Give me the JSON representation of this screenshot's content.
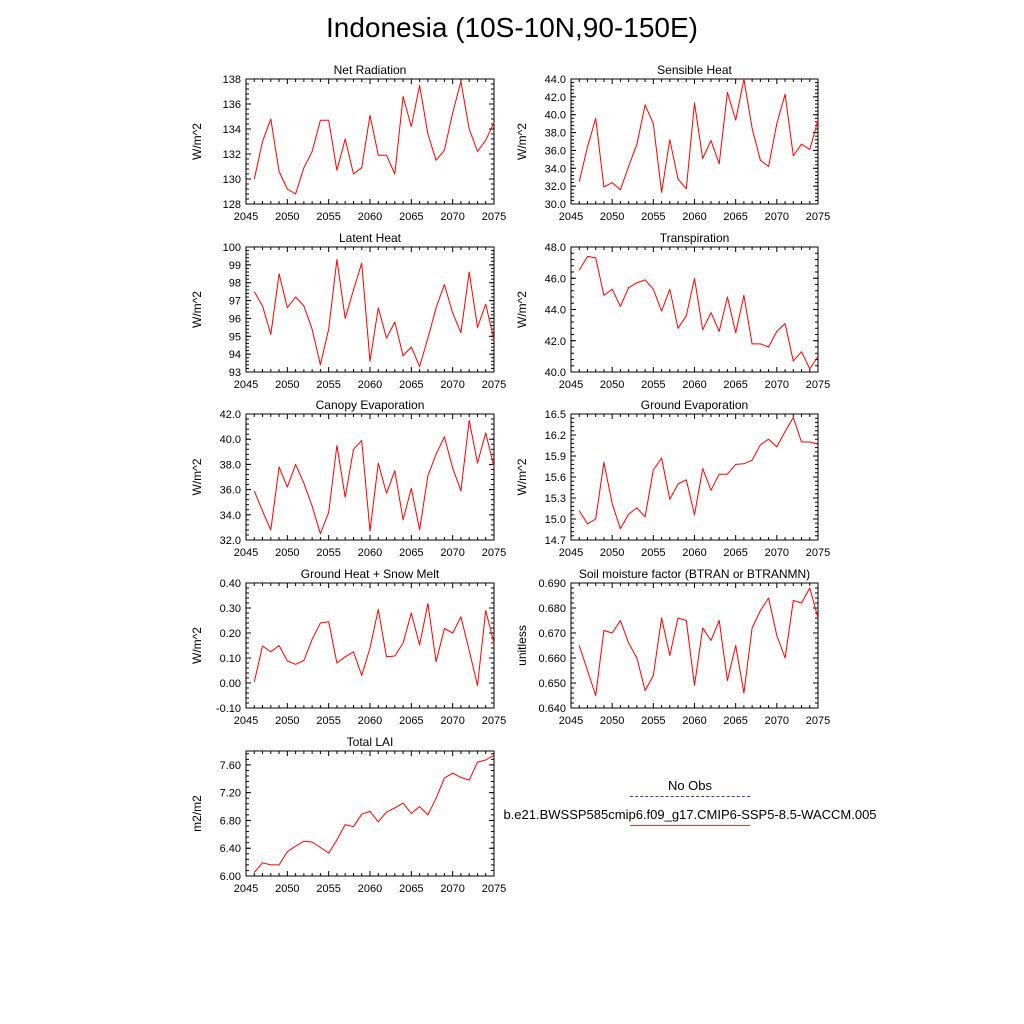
{
  "title": "Indonesia (10S-10N,90-150E)",
  "legend": [
    {
      "label": "No Obs",
      "color": "#3a3aa8",
      "style": "dashed"
    },
    {
      "label": "b.e21.BWSSP585cmip6.f09_g17.CMIP6-SSP5-8.5-WACCM.005",
      "color": "#ff0000",
      "style": "solid"
    }
  ],
  "chart_data": [
    {
      "type": "line",
      "title": "Net Radiation",
      "ylabel": "W/m^2",
      "xlim": [
        2045,
        2075
      ],
      "ylim": [
        128,
        138
      ],
      "xticks": [
        2045,
        2050,
        2055,
        2060,
        2065,
        2070,
        2075
      ],
      "yticks": [
        "128",
        "130",
        "132",
        "134",
        "136",
        "138"
      ],
      "series": [
        {
          "color": "#ff0000",
          "x": [
            2046,
            2047,
            2048,
            2049,
            2050,
            2051,
            2052,
            2053,
            2054,
            2055,
            2056,
            2057,
            2058,
            2059,
            2060,
            2061,
            2062,
            2063,
            2064,
            2065,
            2066,
            2067,
            2068,
            2069,
            2070,
            2071,
            2072,
            2073,
            2074,
            2075
          ],
          "y": [
            130.0,
            133.0,
            134.8,
            130.6,
            129.2,
            128.8,
            130.9,
            132.2,
            134.7,
            134.7,
            130.7,
            133.2,
            130.4,
            130.9,
            135.1,
            131.9,
            131.9,
            130.4,
            136.6,
            134.2,
            137.5,
            133.6,
            131.5,
            132.3,
            135.3,
            137.8,
            134.0,
            132.2,
            133.1,
            134.5
          ]
        }
      ]
    },
    {
      "type": "line",
      "title": "Sensible Heat",
      "ylabel": "W/m^2",
      "xlim": [
        2045,
        2075
      ],
      "ylim": [
        30,
        44
      ],
      "xticks": [
        2045,
        2050,
        2055,
        2060,
        2065,
        2070,
        2075
      ],
      "yticks": [
        "30.0",
        "32.0",
        "34.0",
        "36.0",
        "38.0",
        "40.0",
        "42.0",
        "44.0"
      ],
      "series": [
        {
          "color": "#ff0000",
          "x": [
            2046,
            2047,
            2048,
            2049,
            2050,
            2051,
            2052,
            2053,
            2054,
            2055,
            2056,
            2057,
            2058,
            2059,
            2060,
            2061,
            2062,
            2063,
            2064,
            2065,
            2066,
            2067,
            2068,
            2069,
            2070,
            2071,
            2072,
            2073,
            2074,
            2075
          ],
          "y": [
            32.5,
            36.4,
            39.6,
            31.9,
            32.4,
            31.6,
            34.2,
            36.7,
            41.1,
            39.0,
            31.3,
            37.2,
            32.8,
            31.7,
            41.3,
            35.1,
            37.1,
            34.5,
            42.5,
            39.4,
            44.0,
            38.5,
            34.9,
            34.2,
            39.0,
            42.3,
            35.4,
            36.7,
            36.1,
            39.4
          ]
        }
      ]
    },
    {
      "type": "line",
      "title": "Latent Heat",
      "ylabel": "W/m^2",
      "xlim": [
        2045,
        2075
      ],
      "ylim": [
        93,
        100
      ],
      "xticks": [
        2045,
        2050,
        2055,
        2060,
        2065,
        2070,
        2075
      ],
      "yticks": [
        "93",
        "94",
        "95",
        "96",
        "97",
        "98",
        "99",
        "100"
      ],
      "series": [
        {
          "color": "#ff0000",
          "x": [
            2046,
            2047,
            2048,
            2049,
            2050,
            2051,
            2052,
            2053,
            2054,
            2055,
            2056,
            2057,
            2058,
            2059,
            2060,
            2061,
            2062,
            2063,
            2064,
            2065,
            2066,
            2067,
            2068,
            2069,
            2070,
            2071,
            2072,
            2073,
            2074,
            2075
          ],
          "y": [
            97.5,
            96.7,
            95.1,
            98.5,
            96.6,
            97.2,
            96.7,
            95.4,
            93.4,
            95.4,
            99.3,
            96.0,
            97.6,
            99.1,
            93.6,
            96.6,
            94.9,
            95.8,
            93.9,
            94.4,
            93.3,
            94.9,
            96.6,
            97.9,
            96.3,
            95.2,
            98.6,
            95.5,
            96.8,
            94.8
          ]
        }
      ]
    },
    {
      "type": "line",
      "title": "Transpiration",
      "ylabel": "W/m^2",
      "xlim": [
        2045,
        2075
      ],
      "ylim": [
        40,
        48
      ],
      "xticks": [
        2045,
        2050,
        2055,
        2060,
        2065,
        2070,
        2075
      ],
      "yticks": [
        "40.0",
        "42.0",
        "44.0",
        "46.0",
        "48.0"
      ],
      "series": [
        {
          "color": "#ff0000",
          "x": [
            2046,
            2047,
            2048,
            2049,
            2050,
            2051,
            2052,
            2053,
            2054,
            2055,
            2056,
            2057,
            2058,
            2059,
            2060,
            2061,
            2062,
            2063,
            2064,
            2065,
            2066,
            2067,
            2068,
            2069,
            2070,
            2071,
            2072,
            2073,
            2074,
            2075
          ],
          "y": [
            46.5,
            47.4,
            47.3,
            44.9,
            45.3,
            44.2,
            45.4,
            45.7,
            45.9,
            45.3,
            43.9,
            45.3,
            42.8,
            43.6,
            46.0,
            42.7,
            43.8,
            42.6,
            44.8,
            42.5,
            44.9,
            41.8,
            41.8,
            41.6,
            42.6,
            43.1,
            40.7,
            41.3,
            40.2,
            41.0
          ]
        }
      ]
    },
    {
      "type": "line",
      "title": "Canopy Evaporation",
      "ylabel": "W/m^2",
      "xlim": [
        2045,
        2075
      ],
      "ylim": [
        32,
        42
      ],
      "xticks": [
        2045,
        2050,
        2055,
        2060,
        2065,
        2070,
        2075
      ],
      "yticks": [
        "32.0",
        "34.0",
        "36.0",
        "38.0",
        "40.0",
        "42.0"
      ],
      "series": [
        {
          "color": "#ff0000",
          "x": [
            2046,
            2047,
            2048,
            2049,
            2050,
            2051,
            2052,
            2053,
            2054,
            2055,
            2056,
            2057,
            2058,
            2059,
            2060,
            2061,
            2062,
            2063,
            2064,
            2065,
            2066,
            2067,
            2068,
            2069,
            2070,
            2071,
            2072,
            2073,
            2074,
            2075
          ],
          "y": [
            35.9,
            34.3,
            32.8,
            37.8,
            36.2,
            38.0,
            36.5,
            34.7,
            32.5,
            34.2,
            39.5,
            35.4,
            39.2,
            39.9,
            32.7,
            38.1,
            35.7,
            37.5,
            33.6,
            36.1,
            32.8,
            37.1,
            38.8,
            40.2,
            37.7,
            35.9,
            41.5,
            38.1,
            40.5,
            37.8
          ]
        }
      ]
    },
    {
      "type": "line",
      "title": "Ground Evaporation",
      "ylabel": "W/m^2",
      "xlim": [
        2045,
        2075
      ],
      "ylim": [
        14.7,
        16.5
      ],
      "xticks": [
        2045,
        2050,
        2055,
        2060,
        2065,
        2070,
        2075
      ],
      "yticks": [
        "14.7",
        "15.0",
        "15.3",
        "15.6",
        "15.9",
        "16.2",
        "16.5"
      ],
      "series": [
        {
          "color": "#ff0000",
          "x": [
            2046,
            2047,
            2048,
            2049,
            2050,
            2051,
            2052,
            2053,
            2054,
            2055,
            2056,
            2057,
            2058,
            2059,
            2060,
            2061,
            2062,
            2063,
            2064,
            2065,
            2066,
            2067,
            2068,
            2069,
            2070,
            2071,
            2072,
            2073,
            2074,
            2075
          ],
          "y": [
            15.12,
            14.93,
            15.0,
            15.81,
            15.22,
            14.86,
            15.07,
            15.16,
            15.03,
            15.7,
            15.87,
            15.28,
            15.5,
            15.56,
            15.06,
            15.72,
            15.41,
            15.64,
            15.64,
            15.78,
            15.79,
            15.84,
            16.06,
            16.14,
            16.03,
            16.25,
            16.45,
            16.1,
            16.1,
            16.07
          ]
        }
      ]
    },
    {
      "type": "line",
      "title": "Ground Heat + Snow Melt",
      "ylabel": "W/m^2",
      "xlim": [
        2045,
        2075
      ],
      "ylim": [
        -0.1,
        0.4
      ],
      "xticks": [
        2045,
        2050,
        2055,
        2060,
        2065,
        2070,
        2075
      ],
      "yticks": [
        "-0.10",
        "0.00",
        "0.10",
        "0.20",
        "0.30",
        "0.40"
      ],
      "series": [
        {
          "color": "#ff0000",
          "x": [
            2046,
            2047,
            2048,
            2049,
            2050,
            2051,
            2052,
            2053,
            2054,
            2055,
            2056,
            2057,
            2058,
            2059,
            2060,
            2061,
            2062,
            2063,
            2064,
            2065,
            2066,
            2067,
            2068,
            2069,
            2070,
            2071,
            2072,
            2073,
            2074,
            2075
          ],
          "y": [
            0.005,
            0.148,
            0.125,
            0.15,
            0.088,
            0.075,
            0.09,
            0.175,
            0.24,
            0.245,
            0.08,
            0.105,
            0.125,
            0.03,
            0.14,
            0.295,
            0.105,
            0.108,
            0.16,
            0.28,
            0.152,
            0.318,
            0.085,
            0.218,
            0.2,
            0.265,
            0.13,
            -0.01,
            0.29,
            0.16
          ]
        }
      ]
    },
    {
      "type": "line",
      "title": "Soil moisture factor (BTRAN or BTRANMN)",
      "ylabel": "unitless",
      "xlim": [
        2045,
        2075
      ],
      "ylim": [
        0.64,
        0.69
      ],
      "xticks": [
        2045,
        2050,
        2055,
        2060,
        2065,
        2070,
        2075
      ],
      "yticks": [
        "0.640",
        "0.650",
        "0.660",
        "0.670",
        "0.680",
        "0.690"
      ],
      "series": [
        {
          "color": "#ff0000",
          "x": [
            2046,
            2047,
            2048,
            2049,
            2050,
            2051,
            2052,
            2053,
            2054,
            2055,
            2056,
            2057,
            2058,
            2059,
            2060,
            2061,
            2062,
            2063,
            2064,
            2065,
            2066,
            2067,
            2068,
            2069,
            2070,
            2071,
            2072,
            2073,
            2074,
            2075
          ],
          "y": [
            0.665,
            0.655,
            0.645,
            0.671,
            0.67,
            0.675,
            0.666,
            0.66,
            0.647,
            0.653,
            0.676,
            0.661,
            0.676,
            0.675,
            0.649,
            0.672,
            0.667,
            0.675,
            0.651,
            0.665,
            0.646,
            0.672,
            0.679,
            0.684,
            0.669,
            0.66,
            0.683,
            0.682,
            0.688,
            0.676
          ]
        }
      ]
    },
    {
      "type": "line",
      "title": "Total LAI",
      "ylabel": "m2/m2",
      "xlim": [
        2045,
        2075
      ],
      "ylim": [
        6.0,
        7.8
      ],
      "xticks": [
        2045,
        2050,
        2055,
        2060,
        2065,
        2070,
        2075
      ],
      "yticks": [
        "6.00",
        "6.40",
        "6.80",
        "7.20",
        "7.60"
      ],
      "series": [
        {
          "color": "#ff0000",
          "x": [
            2046,
            2047,
            2048,
            2049,
            2050,
            2051,
            2052,
            2053,
            2054,
            2055,
            2056,
            2057,
            2058,
            2059,
            2060,
            2061,
            2062,
            2063,
            2064,
            2065,
            2066,
            2067,
            2068,
            2069,
            2070,
            2071,
            2072,
            2073,
            2074,
            2075
          ],
          "y": [
            6.05,
            6.19,
            6.16,
            6.16,
            6.35,
            6.43,
            6.5,
            6.49,
            6.41,
            6.33,
            6.52,
            6.74,
            6.71,
            6.89,
            6.93,
            6.78,
            6.92,
            6.98,
            7.05,
            6.9,
            7.0,
            6.88,
            7.12,
            7.41,
            7.48,
            7.42,
            7.38,
            7.64,
            7.67,
            7.74
          ]
        }
      ]
    }
  ]
}
